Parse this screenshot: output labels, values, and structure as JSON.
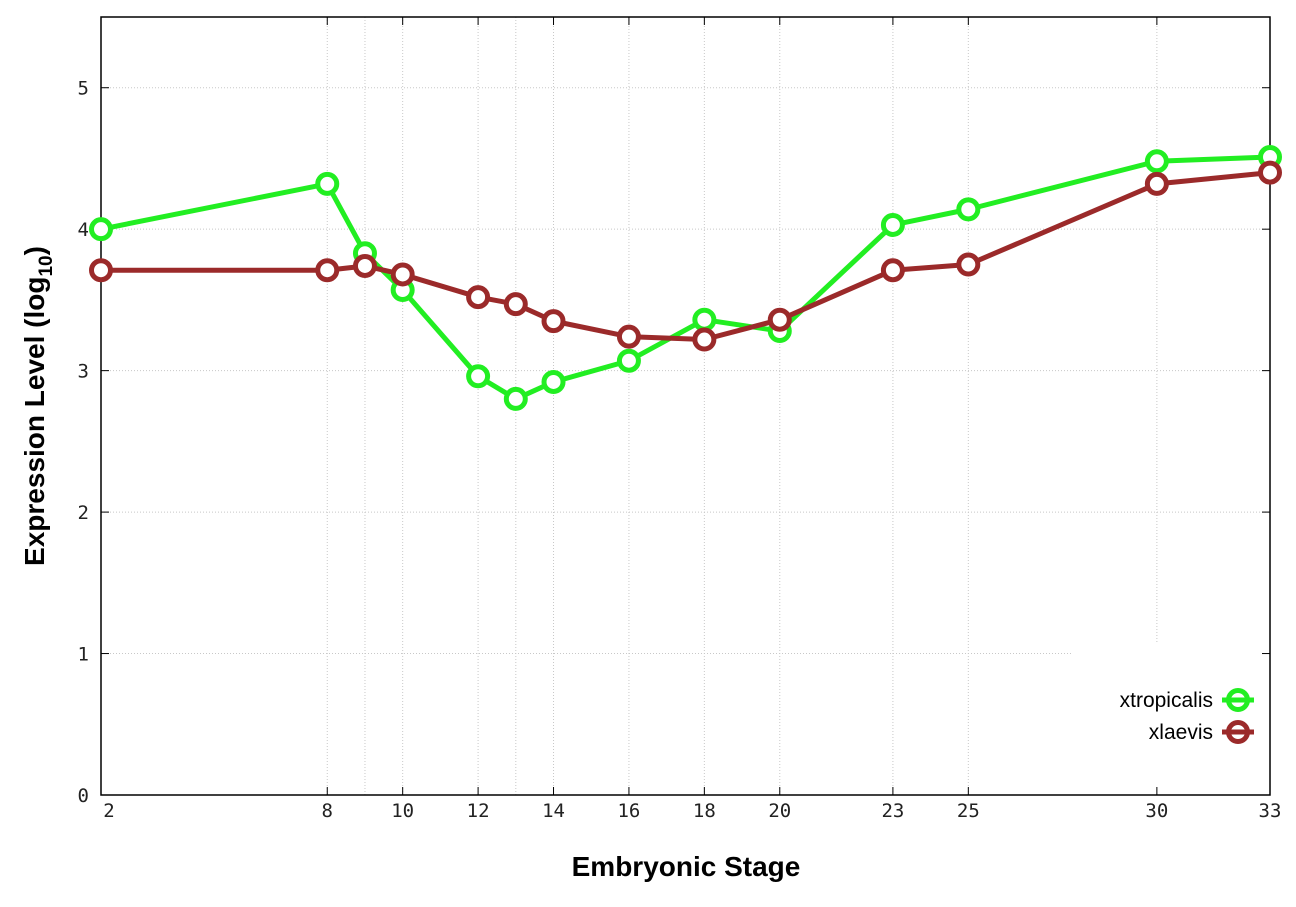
{
  "chart_data": {
    "type": "line",
    "title": "",
    "xlabel": "Embryonic Stage",
    "ylabel": "Expression Level (log",
    "ylabel_subscript": "10",
    "ylabel_suffix": ")",
    "xlim": [
      2,
      33
    ],
    "ylim": [
      0,
      5.5
    ],
    "x_ticks": [
      2,
      8,
      10,
      12,
      14,
      16,
      18,
      20,
      23,
      25,
      30,
      33
    ],
    "x_gridlines": [
      8,
      9,
      10,
      12,
      13,
      14,
      16,
      18,
      20,
      23,
      25,
      30
    ],
    "y_ticks": [
      0,
      1,
      2,
      3,
      4,
      5
    ],
    "grid": true,
    "legend_placement": "bottom-right",
    "x": [
      2,
      8,
      9,
      10,
      12,
      13,
      14,
      16,
      18,
      20,
      23,
      25,
      30,
      33
    ],
    "series": [
      {
        "name": "xtropicalis",
        "color": "#22ee22",
        "values": [
          4.0,
          4.32,
          3.83,
          3.57,
          2.96,
          2.8,
          2.92,
          3.07,
          3.36,
          3.28,
          4.03,
          4.14,
          4.48,
          4.51
        ]
      },
      {
        "name": "xlaevis",
        "color": "#9b2a2a",
        "values": [
          3.71,
          3.71,
          3.74,
          3.68,
          3.52,
          3.47,
          3.35,
          3.24,
          3.22,
          3.36,
          3.71,
          3.75,
          4.32,
          4.4
        ]
      }
    ]
  }
}
